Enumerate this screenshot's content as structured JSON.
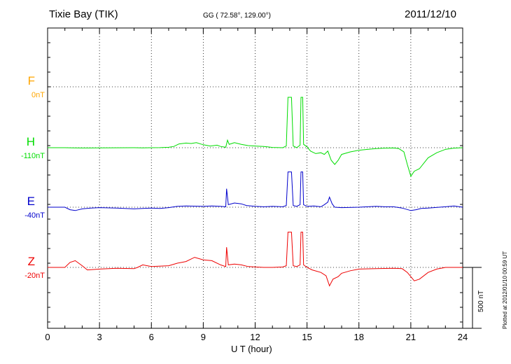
{
  "header": {
    "title": "Tixie Bay (TIK)",
    "coords": "GG ( 72.58°, 129.00°)",
    "date": "2011/12/10"
  },
  "plotted_note": "Plotted at 2012/01/10 00:59 UT",
  "scale_label": "500 nT",
  "chart_data": {
    "type": "line",
    "title": "Tixie Bay (TIK)",
    "subtitle": "GG ( 72.58°, 129.00°)",
    "date": "2011/12/10",
    "xlabel": "U T (hour)",
    "xlim": [
      0,
      24
    ],
    "xticks": [
      0,
      3,
      6,
      9,
      12,
      15,
      18,
      21,
      24
    ],
    "grid": true,
    "scale_bar_nT": 500,
    "series": [
      {
        "name": "F",
        "baseline": "0nT",
        "color": "#ffa500",
        "values": []
      },
      {
        "name": "H",
        "baseline": "-110nT",
        "color": "#00dd00",
        "points": [
          [
            0,
            0
          ],
          [
            1,
            0
          ],
          [
            1.5,
            -2
          ],
          [
            2,
            -3
          ],
          [
            3,
            -2
          ],
          [
            4,
            -1
          ],
          [
            5,
            0
          ],
          [
            5.5,
            -2
          ],
          [
            6,
            0
          ],
          [
            6.5,
            1
          ],
          [
            7,
            5
          ],
          [
            7.3,
            15
          ],
          [
            7.6,
            45
          ],
          [
            8,
            55
          ],
          [
            8.3,
            50
          ],
          [
            8.6,
            60
          ],
          [
            9,
            35
          ],
          [
            9.4,
            20
          ],
          [
            9.8,
            30
          ],
          [
            10,
            15
          ],
          [
            10.3,
            5
          ],
          [
            10.4,
            90
          ],
          [
            10.5,
            40
          ],
          [
            10.8,
            60
          ],
          [
            11.2,
            40
          ],
          [
            11.6,
            25
          ],
          [
            12,
            20
          ],
          [
            12.5,
            15
          ],
          [
            13,
            3
          ],
          [
            13.6,
            0
          ],
          [
            13.8,
            20
          ],
          [
            13.9,
            600
          ],
          [
            14.1,
            600
          ],
          [
            14.2,
            20
          ],
          [
            14.4,
            0
          ],
          [
            14.6,
            30
          ],
          [
            14.65,
            600
          ],
          [
            14.75,
            600
          ],
          [
            14.8,
            40
          ],
          [
            15,
            10
          ],
          [
            15.2,
            -40
          ],
          [
            15.5,
            -70
          ],
          [
            15.8,
            -60
          ],
          [
            16,
            -80
          ],
          [
            16.2,
            -40
          ],
          [
            16.4,
            -150
          ],
          [
            16.6,
            -200
          ],
          [
            16.8,
            -150
          ],
          [
            17,
            -80
          ],
          [
            17.5,
            -50
          ],
          [
            18,
            -30
          ],
          [
            18.5,
            -20
          ],
          [
            19,
            -10
          ],
          [
            19.5,
            -5
          ],
          [
            20,
            -3
          ],
          [
            20.3,
            -10
          ],
          [
            20.6,
            -50
          ],
          [
            20.8,
            -200
          ],
          [
            21,
            -340
          ],
          [
            21.2,
            -280
          ],
          [
            21.5,
            -250
          ],
          [
            22,
            -120
          ],
          [
            22.5,
            -60
          ],
          [
            23,
            -20
          ],
          [
            23.5,
            -5
          ],
          [
            24,
            0
          ]
        ]
      },
      {
        "name": "E",
        "baseline": "-40nT",
        "color": "#0000cc",
        "points": [
          [
            0,
            0
          ],
          [
            1,
            0
          ],
          [
            1.3,
            -30
          ],
          [
            1.6,
            -40
          ],
          [
            2,
            -20
          ],
          [
            2.5,
            -10
          ],
          [
            3,
            -5
          ],
          [
            4,
            -10
          ],
          [
            5,
            -20
          ],
          [
            5.5,
            -15
          ],
          [
            6,
            -10
          ],
          [
            6.5,
            -15
          ],
          [
            7,
            -5
          ],
          [
            7.5,
            10
          ],
          [
            8,
            15
          ],
          [
            9,
            10
          ],
          [
            9.5,
            15
          ],
          [
            10,
            10
          ],
          [
            10.3,
            5
          ],
          [
            10.35,
            220
          ],
          [
            10.45,
            30
          ],
          [
            10.8,
            50
          ],
          [
            11.2,
            40
          ],
          [
            11.5,
            20
          ],
          [
            12,
            10
          ],
          [
            12.5,
            5
          ],
          [
            13,
            10
          ],
          [
            13.6,
            5
          ],
          [
            13.8,
            20
          ],
          [
            13.9,
            420
          ],
          [
            14.1,
            420
          ],
          [
            14.2,
            20
          ],
          [
            14.4,
            10
          ],
          [
            14.6,
            30
          ],
          [
            14.65,
            420
          ],
          [
            14.75,
            420
          ],
          [
            14.8,
            30
          ],
          [
            15,
            10
          ],
          [
            15.4,
            15
          ],
          [
            15.8,
            5
          ],
          [
            16,
            30
          ],
          [
            16.2,
            60
          ],
          [
            16.3,
            120
          ],
          [
            16.45,
            40
          ],
          [
            16.6,
            0
          ],
          [
            17,
            -5
          ],
          [
            18,
            0
          ],
          [
            19,
            10
          ],
          [
            19.5,
            5
          ],
          [
            20,
            5
          ],
          [
            20.5,
            -10
          ],
          [
            21,
            -40
          ],
          [
            21.3,
            -30
          ],
          [
            21.6,
            -15
          ],
          [
            22,
            -10
          ],
          [
            23,
            5
          ],
          [
            23.5,
            15
          ],
          [
            24,
            0
          ]
        ]
      },
      {
        "name": "Z",
        "baseline": "-20nT",
        "color": "#ee0000",
        "points": [
          [
            0,
            0
          ],
          [
            1,
            0
          ],
          [
            1.3,
            60
          ],
          [
            1.6,
            80
          ],
          [
            2,
            20
          ],
          [
            2.3,
            -30
          ],
          [
            3,
            -20
          ],
          [
            4,
            -10
          ],
          [
            5,
            -15
          ],
          [
            5.2,
            0
          ],
          [
            5.5,
            30
          ],
          [
            6,
            10
          ],
          [
            7,
            20
          ],
          [
            7.5,
            50
          ],
          [
            8,
            70
          ],
          [
            8.5,
            120
          ],
          [
            9,
            90
          ],
          [
            9.5,
            80
          ],
          [
            10,
            30
          ],
          [
            10.3,
            10
          ],
          [
            10.35,
            240
          ],
          [
            10.45,
            30
          ],
          [
            10.8,
            40
          ],
          [
            11.2,
            30
          ],
          [
            11.6,
            10
          ],
          [
            12,
            5
          ],
          [
            12.5,
            0
          ],
          [
            13,
            0
          ],
          [
            13.6,
            5
          ],
          [
            13.8,
            20
          ],
          [
            13.9,
            420
          ],
          [
            14.1,
            420
          ],
          [
            14.2,
            20
          ],
          [
            14.4,
            10
          ],
          [
            14.6,
            30
          ],
          [
            14.65,
            420
          ],
          [
            14.75,
            420
          ],
          [
            14.8,
            30
          ],
          [
            15,
            0
          ],
          [
            15.3,
            -30
          ],
          [
            15.8,
            -60
          ],
          [
            16.1,
            -100
          ],
          [
            16.3,
            -220
          ],
          [
            16.5,
            -140
          ],
          [
            16.8,
            -110
          ],
          [
            17,
            -70
          ],
          [
            17.5,
            -40
          ],
          [
            18,
            -20
          ],
          [
            19,
            -15
          ],
          [
            20,
            -10
          ],
          [
            20.5,
            -15
          ],
          [
            20.8,
            -60
          ],
          [
            21,
            -110
          ],
          [
            21.2,
            -160
          ],
          [
            21.5,
            -140
          ],
          [
            22,
            -60
          ],
          [
            22.5,
            -20
          ],
          [
            23,
            0
          ],
          [
            24,
            0
          ]
        ]
      }
    ]
  }
}
